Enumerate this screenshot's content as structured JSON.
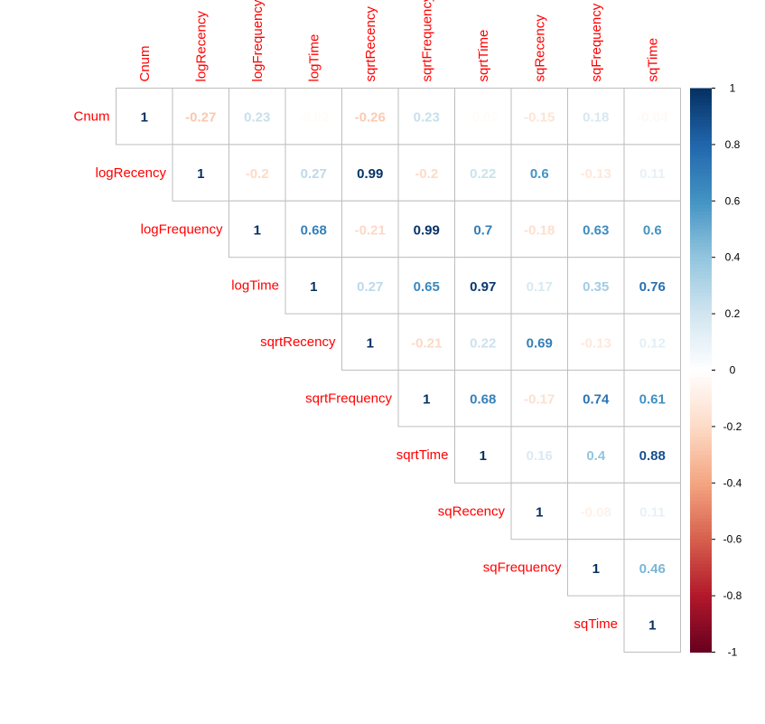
{
  "chart_data": {
    "type": "heatmap",
    "title": "",
    "xlabel": "",
    "ylabel": "",
    "variables": [
      "Cnum",
      "logRecency",
      "logFrequency",
      "logTime",
      "sqrtRecency",
      "sqrtFrequency",
      "sqrtTime",
      "sqRecency",
      "sqFrequency",
      "sqTime"
    ],
    "matrix_upper": [
      [
        1,
        -0.27,
        0.23,
        -0.02,
        -0.26,
        0.23,
        -0.02,
        -0.15,
        0.18,
        -0.04
      ],
      [
        1,
        -0.2,
        0.27,
        0.99,
        -0.2,
        0.22,
        0.6,
        -0.13,
        0.11
      ],
      [
        1,
        0.68,
        -0.21,
        0.99,
        0.7,
        -0.18,
        0.63,
        0.6
      ],
      [
        1,
        0.27,
        0.65,
        0.97,
        0.17,
        0.35,
        0.76
      ],
      [
        1,
        -0.21,
        0.22,
        0.69,
        -0.13,
        0.12
      ],
      [
        1,
        0.68,
        -0.17,
        0.74,
        0.61
      ],
      [
        1,
        0.16,
        0.4,
        0.88
      ],
      [
        1,
        -0.08,
        0.11
      ],
      [
        1,
        0.46
      ],
      [
        1
      ]
    ],
    "color_scale": {
      "range": [
        -1,
        1
      ],
      "ticks": [
        "1",
        "0.8",
        "0.6",
        "0.4",
        "0.2",
        "0",
        "-0.2",
        "-0.4",
        "-0.6",
        "-0.8",
        "-1"
      ],
      "colors": [
        "#67001F",
        "#B2182B",
        "#D6604D",
        "#F4A582",
        "#FDDBC7",
        "#FFFFFF",
        "#D1E5F0",
        "#92C5DE",
        "#4393C3",
        "#2166AC",
        "#053061"
      ]
    },
    "label_color": "#FF0000",
    "grid_color": "#BEBEBE"
  }
}
